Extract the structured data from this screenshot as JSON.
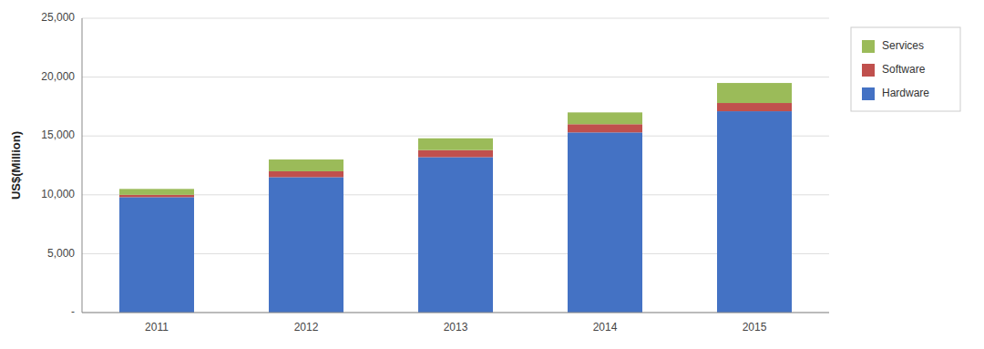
{
  "chart_data": {
    "type": "bar",
    "stacked": true,
    "categories": [
      "2011",
      "2012",
      "2013",
      "2014",
      "2015"
    ],
    "series": [
      {
        "name": "Hardware",
        "color": "#4472C4",
        "values": [
          9800,
          11500,
          13200,
          15300,
          17100
        ]
      },
      {
        "name": "Software",
        "color": "#C0504D",
        "values": [
          200,
          500,
          600,
          700,
          700
        ]
      },
      {
        "name": "Services",
        "color": "#9BBB59",
        "values": [
          500,
          1000,
          1000,
          1000,
          1700
        ]
      }
    ],
    "ylabel": "US$(Million)",
    "ylim": [
      0,
      25000
    ],
    "yticks": [
      {
        "value": 0,
        "label": "-"
      },
      {
        "value": 5000,
        "label": "5,000"
      },
      {
        "value": 10000,
        "label": "10,000"
      },
      {
        "value": 15000,
        "label": "15,000"
      },
      {
        "value": 20000,
        "label": "20,000"
      },
      {
        "value": 25000,
        "label": "25,000"
      }
    ],
    "grid": true,
    "legend": "right"
  }
}
